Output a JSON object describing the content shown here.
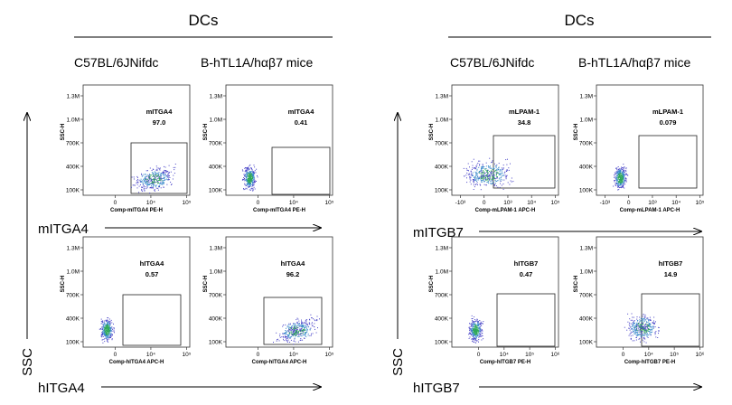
{
  "panels_left": {
    "header": "DCs",
    "strains": [
      "C57BL/6JNifdc",
      "B-hTL1A/hαβ7 mice"
    ],
    "row_markers": [
      "mITGA4",
      "hITGA4"
    ],
    "y_axis_label": "SSC"
  },
  "panels_right": {
    "header": "DCs",
    "strains": [
      "C57BL/6JNifdc",
      "B-hTL1A/hαβ7 mice"
    ],
    "row_markers": [
      "mITGB7",
      "hITGB7"
    ],
    "y_axis_label": "SSC"
  },
  "chart_data": [
    {
      "type": "scatter",
      "gate_label": "mITGA4",
      "value": "97.0",
      "ylabel": "SSC-H",
      "xlabel": "Comp-mITGA4 PE-H",
      "x_ticks": [
        "0",
        "10⁴",
        "10⁵"
      ],
      "y_ticks": [
        "100K",
        "400K",
        "700K",
        "1.0M",
        "1.3M"
      ],
      "population": "high"
    },
    {
      "type": "scatter",
      "gate_label": "mITGA4",
      "value": "0.41",
      "ylabel": "SSC-H",
      "xlabel": "Comp-mITGA4 PE-H",
      "x_ticks": [
        "0",
        "10⁴",
        "10⁵"
      ],
      "y_ticks": [
        "100K",
        "400K",
        "700K",
        "1.0M",
        "1.3M"
      ],
      "population": "low"
    },
    {
      "type": "scatter",
      "gate_label": "hITGA4",
      "value": "0.57",
      "ylabel": "SSC-H",
      "xlabel": "Comp-hITGA4 APC-H",
      "x_ticks": [
        "0",
        "10⁴",
        "10⁵"
      ],
      "y_ticks": [
        "100K",
        "400K",
        "700K",
        "1.0M",
        "1.3M"
      ],
      "population": "low"
    },
    {
      "type": "scatter",
      "gate_label": "hITGA4",
      "value": "96.2",
      "ylabel": "SSC-H",
      "xlabel": "Comp-hITGA4 APC-H",
      "x_ticks": [
        "0",
        "10⁴",
        "10⁵"
      ],
      "y_ticks": [
        "100K",
        "400K",
        "700K",
        "1.0M",
        "1.3M"
      ],
      "population": "high"
    },
    {
      "type": "scatter",
      "gate_label": "mLPAM-1",
      "value": "34.8",
      "ylabel": "SSC-H",
      "xlabel": "Comp-mLPAM-1 APC-H",
      "x_ticks": [
        "-10³",
        "0",
        "10³",
        "10⁴",
        "10⁵"
      ],
      "y_ticks": [
        "100K",
        "400K",
        "700K",
        "1.0M",
        "1.3M"
      ],
      "population": "mixed"
    },
    {
      "type": "scatter",
      "gate_label": "mLPAM-1",
      "value": "0.079",
      "ylabel": "SSC-H",
      "xlabel": "Comp-mLPAM-1 APC-H",
      "x_ticks": [
        "-10³",
        "0",
        "10³",
        "10⁴",
        "10⁵"
      ],
      "y_ticks": [
        "100K",
        "400K",
        "700K",
        "1.0M",
        "1.3M"
      ],
      "population": "low"
    },
    {
      "type": "scatter",
      "gate_label": "hITGB7",
      "value": "0.47",
      "ylabel": "SSC-H",
      "xlabel": "Comp-hITGB7 PE-H",
      "x_ticks": [
        "0",
        "10⁴",
        "10⁵",
        "10⁶"
      ],
      "y_ticks": [
        "100K",
        "400K",
        "700K",
        "1.0M",
        "1.3M"
      ],
      "population": "low"
    },
    {
      "type": "scatter",
      "gate_label": "hITGB7",
      "value": "14.9",
      "ylabel": "SSC-H",
      "xlabel": "Comp-hITGB7 PE-H",
      "x_ticks": [
        "0",
        "10⁴",
        "10⁵",
        "10⁶"
      ],
      "y_ticks": [
        "100K",
        "400K",
        "700K",
        "1.0M",
        "1.3M"
      ],
      "population": "partial"
    }
  ]
}
